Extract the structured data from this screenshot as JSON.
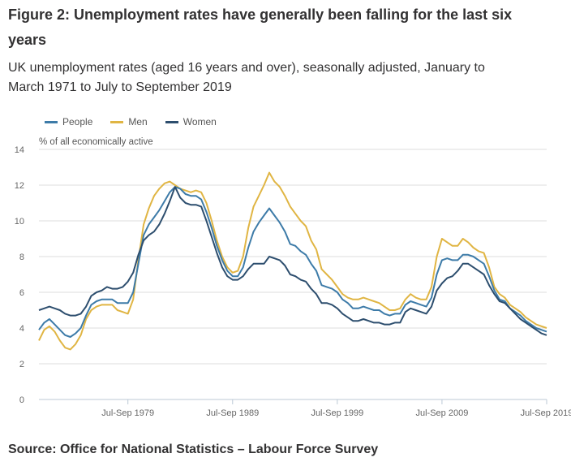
{
  "header": {
    "title": "Figure 2: Unemployment rates have generally been falling for the last six years",
    "subtitle": "UK unemployment rates (aged 16 years and over), seasonally adjusted, January to March 1971 to July to September 2019"
  },
  "source": "Source: Office for National Statistics – Labour Force Survey",
  "chart_data": {
    "type": "line",
    "title": "Figure 2: Unemployment rates have generally been falling for the last six years",
    "subtitle": "UK unemployment rates (aged 16 years and over), seasonally adjusted, January to March 1971 to July to September 2019",
    "xlabel": "",
    "ylabel": "% of all economically active",
    "ylim": [
      0,
      14
    ],
    "xlim": [
      1971.0,
      2019.5
    ],
    "yticks": [
      0,
      2,
      4,
      6,
      8,
      10,
      12,
      14
    ],
    "xticks": [
      {
        "value": 1979.5,
        "label": "Jul-Sep 1979"
      },
      {
        "value": 1989.5,
        "label": "Jul-Sep 1989"
      },
      {
        "value": 1999.5,
        "label": "Jul-Sep 1999"
      },
      {
        "value": 2009.5,
        "label": "Jul-Sep 2009"
      },
      {
        "value": 2019.5,
        "label": "Jul-Sep 2019"
      }
    ],
    "grid": true,
    "legend_position": "top-left",
    "x": [
      1971.0,
      1971.5,
      1972.0,
      1972.5,
      1973.0,
      1973.5,
      1974.0,
      1974.5,
      1975.0,
      1975.5,
      1976.0,
      1976.5,
      1977.0,
      1977.5,
      1978.0,
      1978.5,
      1979.0,
      1979.5,
      1980.0,
      1980.5,
      1981.0,
      1981.5,
      1982.0,
      1982.5,
      1983.0,
      1983.5,
      1984.0,
      1984.5,
      1985.0,
      1985.5,
      1986.0,
      1986.5,
      1987.0,
      1987.5,
      1988.0,
      1988.5,
      1989.0,
      1989.5,
      1990.0,
      1990.5,
      1991.0,
      1991.5,
      1992.0,
      1992.5,
      1993.0,
      1993.5,
      1994.0,
      1994.5,
      1995.0,
      1995.5,
      1996.0,
      1996.5,
      1997.0,
      1997.5,
      1998.0,
      1998.5,
      1999.0,
      1999.5,
      2000.0,
      2000.5,
      2001.0,
      2001.5,
      2002.0,
      2002.5,
      2003.0,
      2003.5,
      2004.0,
      2004.5,
      2005.0,
      2005.5,
      2006.0,
      2006.5,
      2007.0,
      2007.5,
      2008.0,
      2008.5,
      2009.0,
      2009.5,
      2010.0,
      2010.5,
      2011.0,
      2011.5,
      2012.0,
      2012.5,
      2013.0,
      2013.5,
      2014.0,
      2014.5,
      2015.0,
      2015.5,
      2016.0,
      2016.5,
      2017.0,
      2017.5,
      2018.0,
      2018.5,
      2019.0,
      2019.5
    ],
    "series": [
      {
        "name": "People",
        "color": "#3d7ba8",
        "values": [
          3.9,
          4.3,
          4.5,
          4.2,
          3.9,
          3.6,
          3.5,
          3.7,
          4.0,
          4.7,
          5.3,
          5.5,
          5.6,
          5.6,
          5.6,
          5.4,
          5.4,
          5.4,
          6.0,
          7.6,
          9.2,
          9.8,
          10.2,
          10.6,
          11.1,
          11.6,
          11.9,
          11.8,
          11.5,
          11.4,
          11.4,
          11.2,
          10.5,
          9.6,
          8.6,
          7.8,
          7.2,
          6.9,
          6.9,
          7.4,
          8.5,
          9.4,
          9.9,
          10.3,
          10.7,
          10.3,
          9.9,
          9.4,
          8.7,
          8.6,
          8.3,
          8.1,
          7.6,
          7.2,
          6.4,
          6.3,
          6.2,
          6.0,
          5.6,
          5.4,
          5.1,
          5.1,
          5.2,
          5.1,
          5.0,
          5.0,
          4.8,
          4.7,
          4.8,
          4.8,
          5.3,
          5.5,
          5.4,
          5.3,
          5.2,
          5.7,
          7.0,
          7.8,
          7.9,
          7.8,
          7.8,
          8.1,
          8.1,
          8.0,
          7.8,
          7.6,
          6.9,
          6.1,
          5.6,
          5.5,
          5.1,
          4.9,
          4.7,
          4.4,
          4.2,
          4.0,
          3.9,
          3.8
        ]
      },
      {
        "name": "Men",
        "color": "#e0b543",
        "values": [
          3.3,
          3.9,
          4.1,
          3.8,
          3.3,
          2.9,
          2.8,
          3.1,
          3.6,
          4.5,
          5.0,
          5.2,
          5.3,
          5.3,
          5.3,
          5.0,
          4.9,
          4.8,
          5.6,
          7.8,
          9.8,
          10.7,
          11.4,
          11.8,
          12.1,
          12.2,
          12.0,
          11.8,
          11.7,
          11.6,
          11.7,
          11.6,
          11.0,
          10.0,
          8.9,
          8.0,
          7.4,
          7.1,
          7.2,
          8.0,
          9.6,
          10.8,
          11.4,
          12.0,
          12.7,
          12.2,
          11.9,
          11.4,
          10.8,
          10.4,
          10.0,
          9.7,
          8.9,
          8.4,
          7.3,
          7.0,
          6.7,
          6.3,
          5.9,
          5.7,
          5.6,
          5.6,
          5.7,
          5.6,
          5.5,
          5.4,
          5.2,
          5.0,
          5.0,
          5.1,
          5.6,
          5.9,
          5.7,
          5.6,
          5.6,
          6.3,
          8.0,
          9.0,
          8.8,
          8.6,
          8.6,
          9.0,
          8.8,
          8.5,
          8.3,
          8.2,
          7.4,
          6.3,
          5.9,
          5.7,
          5.3,
          5.1,
          4.9,
          4.6,
          4.4,
          4.2,
          4.1,
          4.0
        ]
      },
      {
        "name": "Women",
        "color": "#2d4e6e",
        "values": [
          5.0,
          5.1,
          5.2,
          5.1,
          5.0,
          4.8,
          4.7,
          4.7,
          4.8,
          5.2,
          5.8,
          6.0,
          6.1,
          6.3,
          6.2,
          6.2,
          6.3,
          6.6,
          7.1,
          8.1,
          8.9,
          9.2,
          9.4,
          9.8,
          10.4,
          11.1,
          11.9,
          11.3,
          11.0,
          10.9,
          10.9,
          10.8,
          10.0,
          9.1,
          8.2,
          7.4,
          6.9,
          6.7,
          6.7,
          6.9,
          7.3,
          7.6,
          7.6,
          7.6,
          8.0,
          7.9,
          7.8,
          7.5,
          7.0,
          6.9,
          6.7,
          6.6,
          6.2,
          5.9,
          5.4,
          5.4,
          5.3,
          5.1,
          4.8,
          4.6,
          4.4,
          4.4,
          4.5,
          4.4,
          4.3,
          4.3,
          4.2,
          4.2,
          4.3,
          4.3,
          4.9,
          5.1,
          5.0,
          4.9,
          4.8,
          5.2,
          6.1,
          6.5,
          6.8,
          6.9,
          7.2,
          7.6,
          7.6,
          7.4,
          7.2,
          7.0,
          6.4,
          5.9,
          5.5,
          5.4,
          5.1,
          4.8,
          4.5,
          4.3,
          4.1,
          3.9,
          3.7,
          3.6
        ]
      }
    ]
  }
}
